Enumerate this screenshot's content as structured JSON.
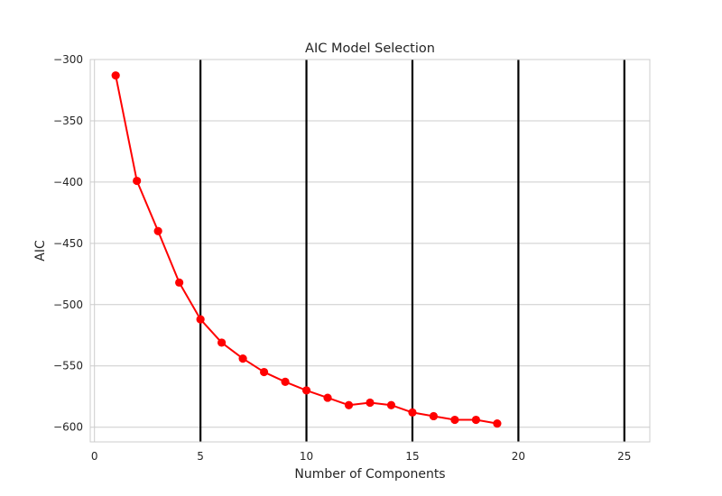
{
  "chart_data": {
    "type": "line",
    "title": "AIC Model Selection",
    "xlabel": "Number of Components",
    "ylabel": "AIC",
    "xlim": [
      -0.2,
      26.2
    ],
    "ylim": [
      -612,
      -300
    ],
    "xticks": [
      0,
      5,
      10,
      15,
      20,
      25
    ],
    "xtick_labels": [
      "0",
      "5",
      "10",
      "15",
      "20",
      "25"
    ],
    "yticks": [
      -300,
      -350,
      -400,
      -450,
      -500,
      -550,
      -600
    ],
    "ytick_labels": [
      "−300",
      "−350",
      "−400",
      "−450",
      "−500",
      "−550",
      "−600"
    ],
    "grid": true,
    "vertical_lines_x": [
      5,
      10,
      15,
      20,
      25
    ],
    "series": [
      {
        "color": "#ff0000",
        "marker": "circle",
        "x": [
          1,
          2,
          3,
          4,
          5,
          6,
          7,
          8,
          9,
          10,
          11,
          12,
          13,
          14,
          15,
          16,
          17,
          18,
          19
        ],
        "values": [
          -313,
          -399,
          -440,
          -482,
          -512,
          -531,
          -544,
          -555,
          -563,
          -570,
          -576,
          -582,
          -580,
          -582,
          -588,
          -591,
          -594,
          -594,
          -597
        ]
      }
    ]
  }
}
